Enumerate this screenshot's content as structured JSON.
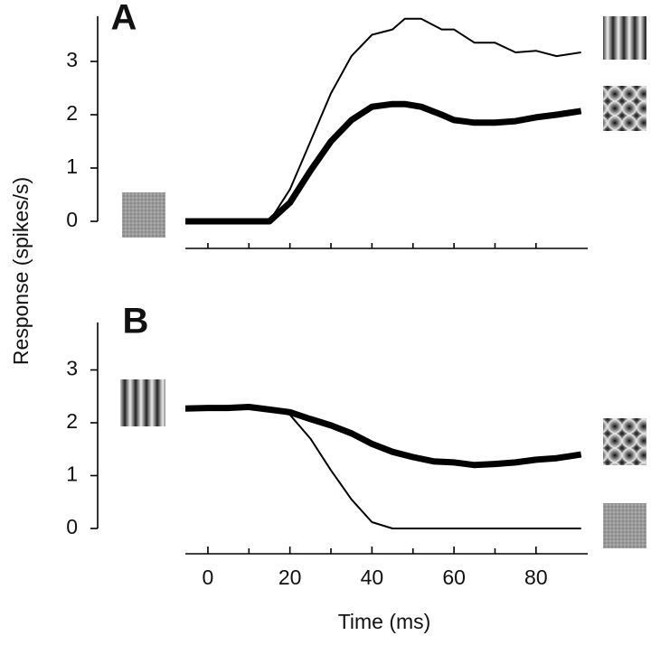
{
  "chart_data": [
    {
      "type": "line",
      "label": "A",
      "ylabel": "Response (spikes/s)",
      "x": [
        -5.5,
        15,
        20,
        25,
        30,
        35,
        40,
        45,
        48,
        52,
        57,
        60,
        65,
        70,
        75,
        80,
        85,
        91
      ],
      "series": [
        {
          "color": "#000000",
          "width": 2,
          "values": [
            0,
            0,
            0.6,
            1.5,
            2.4,
            3.1,
            3.5,
            3.6,
            3.8,
            3.8,
            3.6,
            3.6,
            3.35,
            3.35,
            3.17,
            3.2,
            3.1,
            3.17
          ]
        },
        {
          "color": "#000000",
          "width": 7,
          "values": [
            0,
            0,
            0.35,
            0.95,
            1.5,
            1.9,
            2.15,
            2.2,
            2.2,
            2.15,
            2.0,
            1.9,
            1.85,
            1.85,
            1.88,
            1.95,
            2.0,
            2.07
          ]
        }
      ],
      "xlim": [
        -5.5,
        91.5
      ],
      "ylim": [
        0,
        3.85
      ],
      "yticks": [
        0,
        1,
        2,
        3
      ],
      "minor_xticks": [
        0,
        10,
        20,
        30,
        40,
        50,
        60,
        70,
        80
      ]
    },
    {
      "type": "line",
      "label": "B",
      "xlabel": "Time (ms)",
      "x": [
        -5.5,
        0,
        5,
        10,
        15,
        20,
        25,
        30,
        35,
        40,
        45,
        50,
        55,
        60,
        65,
        70,
        75,
        80,
        85,
        91
      ],
      "series": [
        {
          "color": "#000000",
          "width": 7,
          "values": [
            2.27,
            2.28,
            2.28,
            2.3,
            2.25,
            2.2,
            2.07,
            1.95,
            1.8,
            1.6,
            1.45,
            1.35,
            1.27,
            1.25,
            1.2,
            1.22,
            1.25,
            1.3,
            1.33,
            1.4
          ]
        },
        {
          "color": "#000000",
          "width": 2,
          "values": [
            2.27,
            2.28,
            2.28,
            2.3,
            2.25,
            2.15,
            1.7,
            1.1,
            0.55,
            0.12,
            0,
            0,
            0,
            0,
            0,
            0,
            0,
            0,
            0,
            0
          ]
        }
      ],
      "xlim": [
        -5.5,
        91.5
      ],
      "ylim": [
        0,
        3.9
      ],
      "yticks": [
        0,
        1,
        2,
        3
      ],
      "xticks": [
        0,
        20,
        40,
        60,
        80
      ],
      "minor_xticks": [
        10,
        30,
        50,
        70
      ]
    }
  ]
}
